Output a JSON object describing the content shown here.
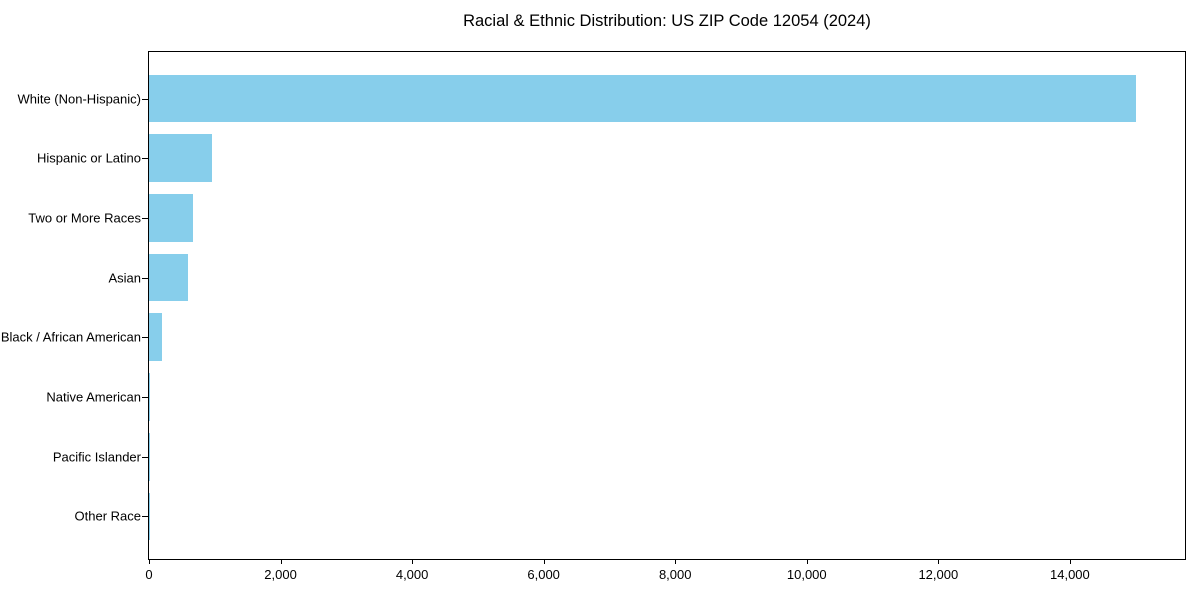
{
  "page": {
    "background_color": "#ffffff"
  },
  "chart_data": {
    "type": "bar",
    "orientation": "horizontal",
    "title": "Racial & Ethnic Distribution: US ZIP Code 12054 (2024)",
    "categories": [
      "White (Non-Hispanic)",
      "Hispanic or Latino",
      "Two or More Races",
      "Asian",
      "Black / African American",
      "Native American",
      "Pacific Islander",
      "Other Race"
    ],
    "values": [
      15000,
      965,
      670,
      595,
      205,
      20,
      10,
      5
    ],
    "bar_color": "#87CEEB",
    "text_color": "#000000",
    "axis_color": "#000000",
    "xlabel": "",
    "ylabel": "",
    "xlim": [
      0,
      15750
    ],
    "x_ticks": [
      0,
      2000,
      4000,
      6000,
      8000,
      10000,
      12000,
      14000
    ],
    "grid": false,
    "legend": "none"
  }
}
